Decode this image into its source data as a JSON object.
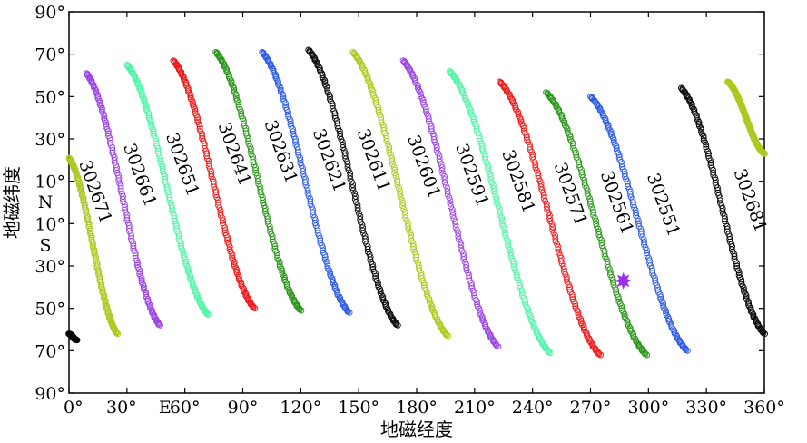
{
  "chart_data": {
    "type": "scatter",
    "xlabel": "地磁经度",
    "ylabel": "地磁纬度",
    "xlim": [
      0,
      360
    ],
    "ylim": [
      -90,
      90
    ],
    "x_ticks": [
      {
        "value": 0,
        "label": "0°"
      },
      {
        "value": 30,
        "label": "30°"
      },
      {
        "value": 60,
        "label": "60°"
      },
      {
        "value": 90,
        "label": "90°"
      },
      {
        "value": 120,
        "label": "120°"
      },
      {
        "value": 150,
        "label": "150°"
      },
      {
        "value": 180,
        "label": "180°"
      },
      {
        "value": 210,
        "label": "210°"
      },
      {
        "value": 240,
        "label": "240°"
      },
      {
        "value": 270,
        "label": "270°"
      },
      {
        "value": 300,
        "label": "300°"
      },
      {
        "value": 330,
        "label": "330°"
      },
      {
        "value": 360,
        "label": "360°"
      }
    ],
    "x_direction_label": {
      "value": 45,
      "label": "E"
    },
    "y_ticks": [
      {
        "value": 90,
        "label": "90°"
      },
      {
        "value": 70,
        "label": "70°"
      },
      {
        "value": 50,
        "label": "50°"
      },
      {
        "value": 30,
        "label": "30°"
      },
      {
        "value": 10,
        "label": "10°"
      },
      {
        "value": -10,
        "label": "10°"
      },
      {
        "value": -30,
        "label": "30°"
      },
      {
        "value": -50,
        "label": "50°"
      },
      {
        "value": -70,
        "label": "70°"
      },
      {
        "value": -90,
        "label": "90°"
      }
    ],
    "y_direction_labels": [
      {
        "value": 0.5,
        "label": "N"
      },
      {
        "value": -20,
        "label": "S"
      }
    ],
    "series": [
      {
        "name": "302671",
        "color": "#adc81e",
        "lon_start": 0,
        "lat_start": 21,
        "lon_end": 25,
        "lat_end": -62,
        "label_lon": 11,
        "label_lat": 4
      },
      {
        "name": "302661",
        "color": "#9b45e4",
        "lon_start": 9,
        "lat_start": 61,
        "lon_end": 47,
        "lat_end": -58,
        "label_lon": 34,
        "label_lat": 12
      },
      {
        "name": "302651",
        "color": "#4df5a4",
        "lon_start": 30,
        "lat_start": 65,
        "lon_end": 72,
        "lat_end": -53,
        "label_lon": 56,
        "label_lat": 17
      },
      {
        "name": "302641",
        "color": "#f01818",
        "lon_start": 54,
        "lat_start": 67,
        "lon_end": 96,
        "lat_end": -50,
        "label_lon": 83,
        "label_lat": 22
      },
      {
        "name": "302631",
        "color": "#2a961a",
        "lon_start": 76,
        "lat_start": 71,
        "lon_end": 120,
        "lat_end": -51,
        "label_lon": 107,
        "label_lat": 23
      },
      {
        "name": "302621",
        "color": "#2d5be8",
        "lon_start": 100,
        "lat_start": 71,
        "lon_end": 145,
        "lat_end": -52,
        "label_lon": 132,
        "label_lat": 19
      },
      {
        "name": "302611",
        "color": "#0a0a0a",
        "lon_start": 124,
        "lat_start": 72,
        "lon_end": 170,
        "lat_end": -58,
        "label_lon": 155,
        "label_lat": 19
      },
      {
        "name": "302601",
        "color": "#adc81e",
        "lon_start": 147,
        "lat_start": 71,
        "lon_end": 196,
        "lat_end": -63,
        "label_lon": 181,
        "label_lat": 16
      },
      {
        "name": "302591",
        "color": "#9b45e4",
        "lon_start": 173,
        "lat_start": 67,
        "lon_end": 222,
        "lat_end": -68,
        "label_lon": 206,
        "label_lat": 12
      },
      {
        "name": "302581",
        "color": "#4df5a4",
        "lon_start": 197,
        "lat_start": 62,
        "lon_end": 249,
        "lat_end": -71,
        "label_lon": 230,
        "label_lat": 9
      },
      {
        "name": "302571",
        "color": "#f01818",
        "lon_start": 223,
        "lat_start": 57,
        "lon_end": 275,
        "lat_end": -72,
        "label_lon": 257,
        "label_lat": 3
      },
      {
        "name": "302561",
        "color": "#2a961a",
        "lon_start": 247,
        "lat_start": 52,
        "lon_end": 299,
        "lat_end": -72,
        "label_lon": 281,
        "label_lat": -1
      },
      {
        "name": "302551",
        "color": "#2d5be8",
        "lon_start": 270,
        "lat_start": 50,
        "lon_end": 320,
        "lat_end": -70,
        "label_lon": 305,
        "label_lat": -2
      },
      {
        "name": "302681",
        "color": "#0a0a0a",
        "lon_start": 317,
        "lat_start": 54,
        "lon_end": 360,
        "lat_end": -62,
        "label_lon": 350,
        "label_lat": 0
      },
      {
        "name": "",
        "color": "#adc81e",
        "lon_start": 341,
        "lat_start": 57,
        "lon_end": 360,
        "lat_end": 23,
        "label_lon": null,
        "label_lat": null
      },
      {
        "name": "",
        "color": "#0a0a0a",
        "lon_start": 0,
        "lat_start": -62,
        "lon_end": 4,
        "lat_end": -65,
        "label_lon": null,
        "label_lat": null
      }
    ],
    "event_marker": {
      "lon": 287,
      "lat": -37,
      "color": "#9b30e8"
    }
  }
}
